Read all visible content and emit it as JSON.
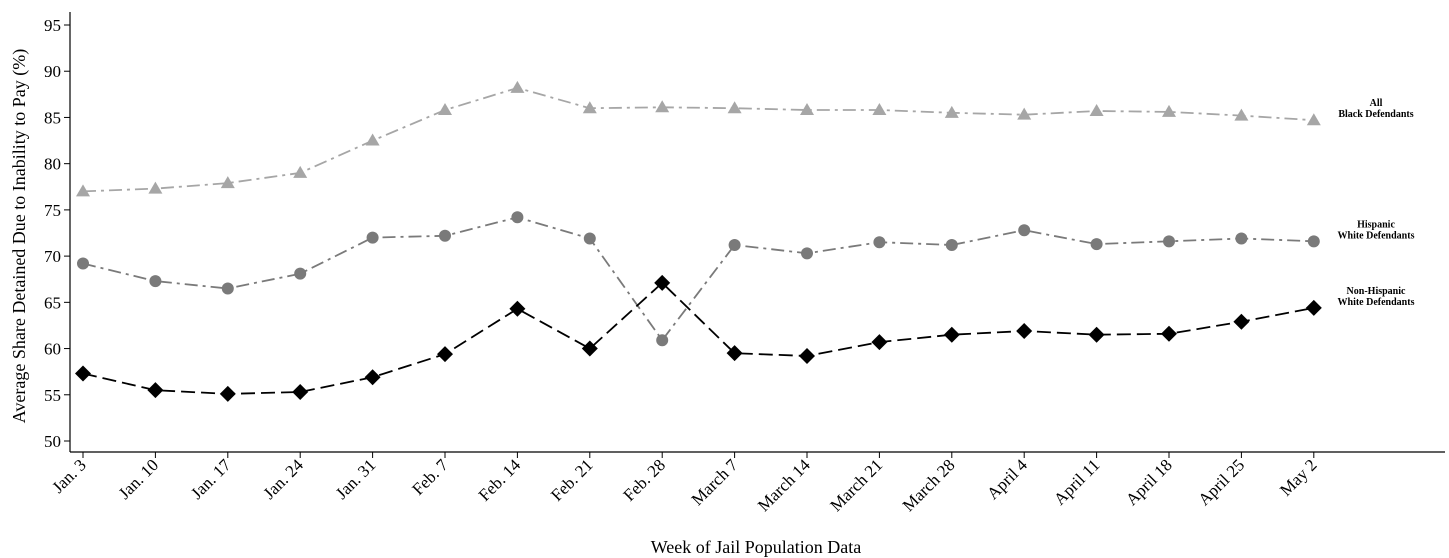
{
  "chart_data": {
    "type": "line",
    "xlabel": "Week of Jail Population Data",
    "ylabel": "Average Share Detained Due to Inability to Pay (%)",
    "ylim": [
      50,
      95
    ],
    "yticks": [
      50,
      55,
      60,
      65,
      70,
      75,
      80,
      85,
      90,
      95
    ],
    "categories": [
      "Jan. 3",
      "Jan. 10",
      "Jan. 17",
      "Jan. 24",
      "Jan. 31",
      "Feb. 7",
      "Feb. 14",
      "Feb. 21",
      "Feb. 28",
      "March 7",
      "March 14",
      "March 21",
      "March 28",
      "April 4",
      "April 11",
      "April 18",
      "April 25",
      "May 2"
    ],
    "grid": false,
    "series": [
      {
        "name_lines": [
          "All",
          "Black Defendants"
        ],
        "marker": "triangle",
        "color": "#a6a6a6",
        "dash": "dash-dot",
        "values": [
          77.0,
          77.3,
          77.9,
          79.0,
          82.5,
          85.8,
          88.2,
          86.0,
          86.1,
          86.0,
          85.8,
          85.8,
          85.5,
          85.3,
          85.7,
          85.6,
          85.2,
          84.7
        ]
      },
      {
        "name_lines": [
          "Hispanic",
          "White Defendants"
        ],
        "marker": "circle",
        "color": "#7a7a7a",
        "dash": "dash-dot",
        "values": [
          69.2,
          67.3,
          66.5,
          68.1,
          72.0,
          72.2,
          74.2,
          71.9,
          60.9,
          71.2,
          70.3,
          71.5,
          71.2,
          72.8,
          71.3,
          71.6,
          71.9,
          71.6
        ]
      },
      {
        "name_lines": [
          "Non-Hispanic",
          "White Defendants"
        ],
        "marker": "diamond",
        "color": "#000000",
        "dash": "long-dash",
        "values": [
          57.3,
          55.5,
          55.1,
          55.3,
          56.9,
          59.4,
          64.3,
          60.0,
          67.1,
          59.5,
          59.2,
          60.7,
          61.5,
          61.9,
          61.5,
          61.6,
          62.9,
          64.4
        ]
      }
    ]
  }
}
